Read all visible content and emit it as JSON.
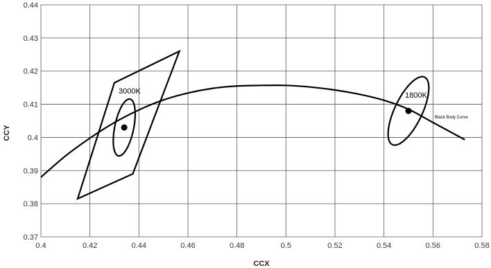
{
  "chart_data": {
    "type": "line",
    "title": "",
    "xlabel": "CCX",
    "ylabel": "CCY",
    "xlim": [
      0.4,
      0.58
    ],
    "ylim": [
      0.37,
      0.44
    ],
    "x_ticks": [
      "0.4",
      "0.42",
      "0.44",
      "0.46",
      "0.48",
      "0.5",
      "0.52",
      "0.54",
      "0.56",
      "0.58"
    ],
    "y_ticks": [
      "0.37",
      "0.38",
      "0.39",
      "0.4",
      "0.41",
      "0.42",
      "0.43",
      "0.44"
    ],
    "grid": true,
    "series": [
      {
        "name": "Black Body Curve",
        "x": [
          0.4,
          0.41,
          0.42,
          0.43,
          0.44,
          0.45,
          0.46,
          0.47,
          0.48,
          0.49,
          0.5,
          0.51,
          0.52,
          0.53,
          0.54,
          0.55,
          0.56,
          0.573
        ],
        "y": [
          0.388,
          0.3944,
          0.3998,
          0.4045,
          0.4083,
          0.4113,
          0.4134,
          0.4148,
          0.4155,
          0.4157,
          0.4157,
          0.4152,
          0.4143,
          0.413,
          0.4112,
          0.4085,
          0.4045,
          0.3993
        ]
      },
      {
        "name": "3000K quadrangle",
        "x": [
          0.43,
          0.4565,
          0.4375,
          0.415,
          0.43
        ],
        "y": [
          0.4165,
          0.426,
          0.389,
          0.3815,
          0.4165
        ]
      }
    ],
    "ellipses": [
      {
        "label": "3000K",
        "center": [
          0.434,
          0.403
        ],
        "semi_major": 0.0089,
        "semi_minor": 0.0038,
        "angle_deg": 73
      },
      {
        "label": "1800K",
        "center": [
          0.55,
          0.408
        ],
        "semi_major": 0.0122,
        "semi_minor": 0.0052,
        "angle_deg": 54
      }
    ],
    "points": [
      {
        "label": "3000K",
        "x": 0.434,
        "y": 0.403
      },
      {
        "label": "1800K",
        "x": 0.55,
        "y": 0.408
      }
    ],
    "annotations": {
      "label_3000k": "3000K",
      "label_1800k": "1800K",
      "label_curve": "Black Body Curve"
    }
  }
}
